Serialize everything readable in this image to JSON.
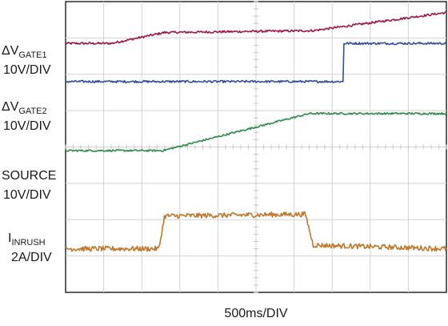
{
  "chart_data": {
    "type": "line",
    "title": "",
    "xlabel": "500ms/DIV",
    "grid": true,
    "divisions": {
      "x": 10,
      "y": 8
    },
    "ylim": [
      0,
      8
    ],
    "series": [
      {
        "name_main": "ΔV",
        "name_sub": "GATE1",
        "scale": "10V/DIV",
        "color": "#a0173f",
        "noise": 0.03,
        "points": [
          [
            0,
            6.85
          ],
          [
            1.2,
            6.85
          ],
          [
            2.6,
            7.15
          ],
          [
            6.5,
            7.2
          ],
          [
            10,
            7.7
          ]
        ]
      },
      {
        "name_main": "ΔV",
        "name_sub": "GATE2",
        "scale": "10V/DIV",
        "color": "#2e4fa0",
        "noise": 0.03,
        "points": [
          [
            0,
            5.8
          ],
          [
            7.3,
            5.8
          ],
          [
            7.3,
            6.85
          ],
          [
            10,
            6.85
          ]
        ]
      },
      {
        "name_main": "SOURCE",
        "name_sub": "",
        "scale": "10V/DIV",
        "color": "#2e8b4a",
        "noise": 0.025,
        "points": [
          [
            0,
            3.9
          ],
          [
            2.55,
            3.9
          ],
          [
            6.4,
            4.92
          ],
          [
            10,
            4.92
          ]
        ]
      },
      {
        "name_main": "I",
        "name_sub": "INRUSH",
        "scale": "2A/DIV",
        "color": "#c0772a",
        "noise": 0.07,
        "points": [
          [
            0,
            1.2
          ],
          [
            2.45,
            1.2
          ],
          [
            2.6,
            2.1
          ],
          [
            6.3,
            2.15
          ],
          [
            6.5,
            1.3
          ],
          [
            10,
            1.2
          ]
        ]
      }
    ]
  }
}
